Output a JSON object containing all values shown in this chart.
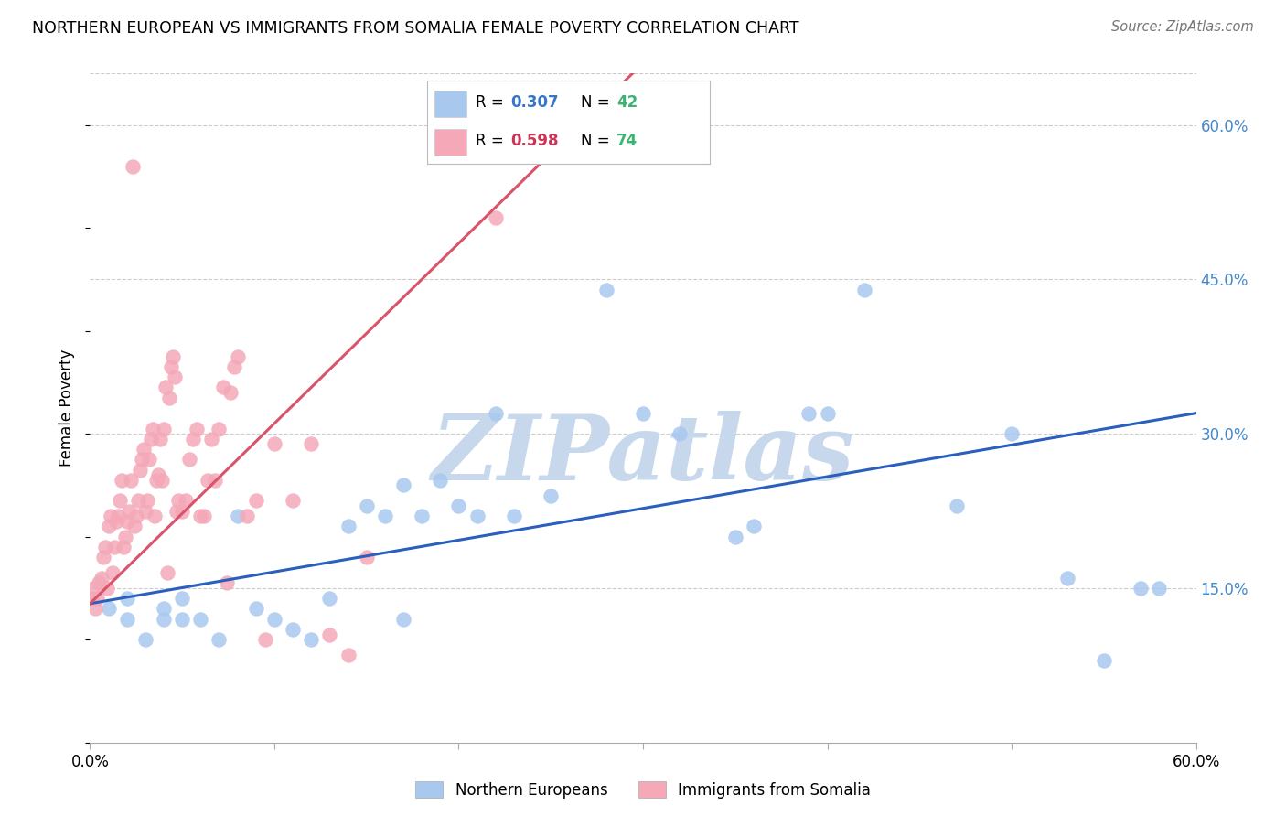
{
  "title": "NORTHERN EUROPEAN VS IMMIGRANTS FROM SOMALIA FEMALE POVERTY CORRELATION CHART",
  "source": "Source: ZipAtlas.com",
  "ylabel": "Female Poverty",
  "xlim": [
    0.0,
    0.6
  ],
  "ylim": [
    0.0,
    0.65
  ],
  "yticks": [
    0.15,
    0.3,
    0.45,
    0.6
  ],
  "yticklabels": [
    "15.0%",
    "30.0%",
    "45.0%",
    "60.0%"
  ],
  "xticks": [
    0.0,
    0.1,
    0.2,
    0.3,
    0.4,
    0.5,
    0.6
  ],
  "xticklabels": [
    "0.0%",
    "",
    "",
    "",
    "",
    "",
    "60.0%"
  ],
  "r_blue": "0.307",
  "n_blue": "42",
  "r_pink": "0.598",
  "n_pink": "74",
  "legend_label_bottom1": "Northern Europeans",
  "legend_label_bottom2": "Immigrants from Somalia",
  "blue_scatter_color": "#a8c8ee",
  "pink_scatter_color": "#f4a8b8",
  "blue_line_color": "#2b5fbe",
  "pink_line_color": "#d9546a",
  "watermark": "ZIPatlas",
  "watermark_color": "#c8d8ec",
  "blue_x": [
    0.01,
    0.02,
    0.02,
    0.03,
    0.04,
    0.04,
    0.05,
    0.05,
    0.06,
    0.07,
    0.08,
    0.09,
    0.1,
    0.11,
    0.12,
    0.13,
    0.14,
    0.15,
    0.16,
    0.17,
    0.17,
    0.18,
    0.19,
    0.2,
    0.21,
    0.22,
    0.23,
    0.25,
    0.28,
    0.3,
    0.32,
    0.35,
    0.36,
    0.39,
    0.4,
    0.42,
    0.47,
    0.5,
    0.53,
    0.55,
    0.57,
    0.58
  ],
  "blue_y": [
    0.13,
    0.12,
    0.14,
    0.1,
    0.13,
    0.12,
    0.12,
    0.14,
    0.12,
    0.1,
    0.22,
    0.13,
    0.12,
    0.11,
    0.1,
    0.14,
    0.21,
    0.23,
    0.22,
    0.25,
    0.12,
    0.22,
    0.255,
    0.23,
    0.22,
    0.32,
    0.22,
    0.24,
    0.44,
    0.32,
    0.3,
    0.2,
    0.21,
    0.32,
    0.32,
    0.44,
    0.23,
    0.3,
    0.16,
    0.08,
    0.15,
    0.15
  ],
  "pink_x": [
    0.001,
    0.002,
    0.003,
    0.004,
    0.005,
    0.006,
    0.007,
    0.008,
    0.009,
    0.01,
    0.011,
    0.012,
    0.013,
    0.014,
    0.015,
    0.016,
    0.017,
    0.018,
    0.019,
    0.02,
    0.021,
    0.022,
    0.023,
    0.024,
    0.025,
    0.026,
    0.027,
    0.028,
    0.029,
    0.03,
    0.031,
    0.032,
    0.033,
    0.034,
    0.035,
    0.036,
    0.037,
    0.038,
    0.039,
    0.04,
    0.041,
    0.042,
    0.043,
    0.044,
    0.045,
    0.046,
    0.047,
    0.048,
    0.05,
    0.052,
    0.054,
    0.056,
    0.058,
    0.06,
    0.062,
    0.064,
    0.066,
    0.068,
    0.07,
    0.072,
    0.074,
    0.076,
    0.078,
    0.08,
    0.085,
    0.09,
    0.095,
    0.1,
    0.11,
    0.12,
    0.13,
    0.14,
    0.15,
    0.22
  ],
  "pink_y": [
    0.14,
    0.15,
    0.13,
    0.14,
    0.155,
    0.16,
    0.18,
    0.19,
    0.15,
    0.21,
    0.22,
    0.165,
    0.19,
    0.215,
    0.22,
    0.235,
    0.255,
    0.19,
    0.2,
    0.215,
    0.225,
    0.255,
    0.56,
    0.21,
    0.22,
    0.235,
    0.265,
    0.275,
    0.285,
    0.225,
    0.235,
    0.275,
    0.295,
    0.305,
    0.22,
    0.255,
    0.26,
    0.295,
    0.255,
    0.305,
    0.345,
    0.165,
    0.335,
    0.365,
    0.375,
    0.355,
    0.225,
    0.235,
    0.225,
    0.235,
    0.275,
    0.295,
    0.305,
    0.22,
    0.22,
    0.255,
    0.295,
    0.255,
    0.305,
    0.345,
    0.155,
    0.34,
    0.365,
    0.375,
    0.22,
    0.235,
    0.1,
    0.29,
    0.235,
    0.29,
    0.105,
    0.085,
    0.18,
    0.51
  ]
}
